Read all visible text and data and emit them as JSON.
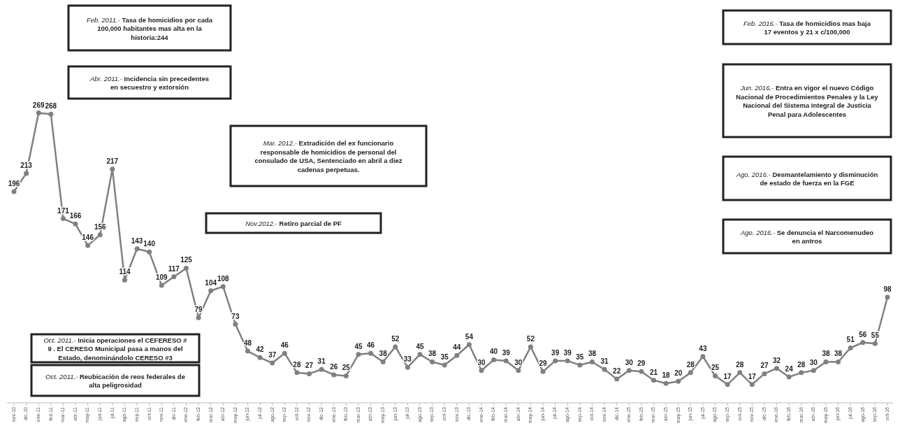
{
  "chart_data": {
    "type": "line",
    "categories": [
      "nov-10",
      "dic-10",
      "ene-11",
      "feb-11",
      "mar-11",
      "abr-11",
      "may-11",
      "jun-11",
      "jul-11",
      "ago-11",
      "sep-11",
      "oct-11",
      "nov-11",
      "dic-11",
      "ene-12",
      "feb-12",
      "mar-12",
      "abr-12",
      "may-12",
      "jun-12",
      "jul-12",
      "ago-12",
      "sep-12",
      "oct-12",
      "nov-12",
      "dic-12",
      "ene-13",
      "feb-13",
      "mar-13",
      "abr-13",
      "may-13",
      "jun-13",
      "jul-13",
      "ago-13",
      "sep-13",
      "oct-13",
      "nov-13",
      "dic-13",
      "ene-14",
      "feb-14",
      "mar-14",
      "abr-14",
      "may-14",
      "jun-14",
      "jul-14",
      "ago-14",
      "sep-14",
      "oct-14",
      "nov-14",
      "dic-14",
      "ene-15",
      "feb-15",
      "mar-15",
      "abr-15",
      "may-15",
      "jun-15",
      "jul-15",
      "ago-15",
      "sep-15",
      "oct-15",
      "nov-15",
      "dic-15",
      "ene-16",
      "feb-16",
      "mar-16",
      "abr-16",
      "may-16",
      "jun-16",
      "jul-16",
      "ago-16",
      "sep-16",
      "oct-16"
    ],
    "series": [
      {
        "color": "#808080",
        "values": [
          196,
          213,
          269,
          268,
          171,
          166,
          146,
          156,
          217,
          114,
          143,
          140,
          109,
          117,
          125,
          79,
          104,
          108,
          73,
          48,
          42,
          37,
          46,
          28,
          27,
          31,
          26,
          25,
          45,
          46,
          38,
          52,
          33,
          45,
          38,
          35,
          44,
          54,
          30,
          40,
          39,
          30,
          52,
          29,
          39,
          39,
          35,
          38,
          31,
          22,
          30,
          29,
          21,
          18,
          20,
          28,
          43,
          25,
          17,
          28,
          17,
          27,
          32,
          24,
          28,
          30,
          38,
          38,
          51,
          56,
          55,
          98
        ]
      }
    ],
    "marker": "circle",
    "data_labels": true,
    "annotations": [
      "Feb. 2011.- Tasa de homicidios por cada 100,000 habitantes mas alta en la historia:244",
      "Abr. 2011.- Incidencia sin precedentes en secuestro y extorsión",
      "Mar. 2012.- Extradición del ex funcionario responsable de homicidios de personal del consulado de USA, Sentenciado en abril a diez cadenas perpetuas.",
      "Nov.2012.- Retiro parcial de PF",
      "Oct. 2011.- Inicia operaciones el CEFERESO # 9 . El CERESO Municipal pasa a manos del Estado, denominándolo CERESO #3",
      "Oct. 2011.- Reubicación de reos federales de alta peligrosidad",
      "Feb. 2016.- Tasa de homicidios mas baja 17 eventos y 21 x c/100,000",
      "Jun. 2016.- Entra en vigor el nuevo Código Nacional de Procedimientos Penales y la Ley Nacional del Sistema Integral de Justicia Penal para Adolescentes",
      "Ago. 2016.- Desmantelamiento y disminución de estado de fuerza en la FGE",
      "Ago. 2016.- Se denuncia el Narcomenudeo en antros"
    ]
  }
}
